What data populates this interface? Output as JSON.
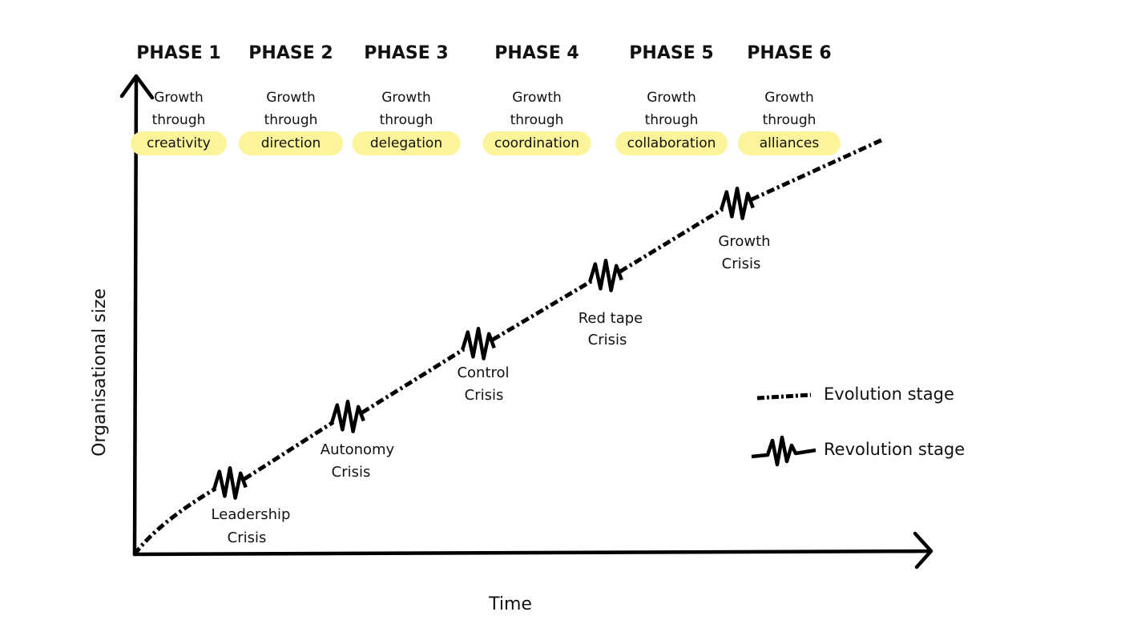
{
  "phases": [
    {
      "title": "PHASE 1",
      "line1": "Growth",
      "line2": "through",
      "focus": "creativity"
    },
    {
      "title": "PHASE 2",
      "line1": "Growth",
      "line2": "through",
      "focus": "direction"
    },
    {
      "title": "PHASE 3",
      "line1": "Growth",
      "line2": "through",
      "focus": "delegation"
    },
    {
      "title": "PHASE 4",
      "line1": "Growth",
      "line2": "through",
      "focus": "coordination"
    },
    {
      "title": "PHASE 5",
      "line1": "Growth",
      "line2": "through",
      "focus": "collaboration"
    },
    {
      "title": "PHASE 6",
      "line1": "Growth",
      "line2": "through",
      "focus": "alliances"
    }
  ],
  "crises": [
    {
      "line1": "Leadership",
      "line2": "Crisis"
    },
    {
      "line1": "Autonomy",
      "line2": "Crisis"
    },
    {
      "line1": "Control",
      "line2": "Crisis"
    },
    {
      "line1": "Red tape",
      "line2": "Crisis"
    },
    {
      "line1": "Growth",
      "line2": "Crisis"
    }
  ],
  "axes": {
    "y": "Organisational size",
    "x": "Time"
  },
  "legend": {
    "evolution": "Evolution stage",
    "revolution": "Revolution stage"
  }
}
